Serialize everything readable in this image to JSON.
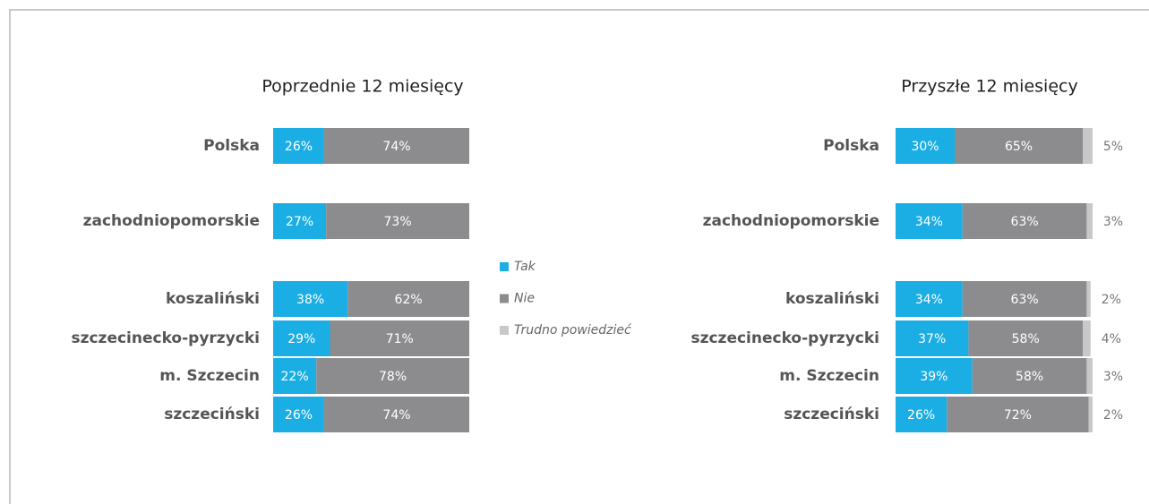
{
  "chart_data": [
    {
      "type": "stacked-bar-horizontal",
      "title": "Poprzednie 12 miesięcy",
      "categories": [
        "Polska",
        "zachodniopomorskie",
        "koszaliński",
        "szczecinecko-pyrzycki",
        "m. Szczecin",
        "szczeciński"
      ],
      "xlim": [
        0,
        100
      ],
      "series": [
        {
          "name": "Tak",
          "color": "#1aaee5",
          "values": [
            26,
            27,
            38,
            29,
            22,
            26
          ],
          "value_labels": [
            "26%",
            "27%",
            "38%",
            "29%",
            "22%",
            "26%"
          ]
        },
        {
          "name": "Nie",
          "color": "#8c8c8e",
          "values": [
            74,
            73,
            62,
            71,
            78,
            74
          ],
          "value_labels": [
            "74%",
            "73%",
            "62%",
            "71%",
            "78%",
            "74%"
          ]
        }
      ]
    },
    {
      "type": "stacked-bar-horizontal",
      "title": "Przyszłe 12 miesięcy",
      "categories": [
        "Polska",
        "zachodniopomorskie",
        "koszaliński",
        "szczecinecko-pyrzycki",
        "m. Szczecin",
        "szczeciński"
      ],
      "xlim": [
        0,
        100
      ],
      "series": [
        {
          "name": "Tak",
          "color": "#1aaee5",
          "values": [
            30,
            34,
            34,
            37,
            39,
            26
          ],
          "value_labels": [
            "30%",
            "34%",
            "34%",
            "37%",
            "39%",
            "26%"
          ]
        },
        {
          "name": "Nie",
          "color": "#8c8c8e",
          "values": [
            65,
            63,
            63,
            58,
            58,
            72
          ],
          "value_labels": [
            "65%",
            "63%",
            "63%",
            "58%",
            "58%",
            "72%"
          ]
        },
        {
          "name": "Trudno powiedzieć",
          "color": "#c8c8c8",
          "values": [
            5,
            3,
            2,
            4,
            3,
            2
          ],
          "value_labels": [
            "5%",
            "3%",
            "2%",
            "4%",
            "3%",
            "2%"
          ]
        }
      ]
    }
  ]
}
